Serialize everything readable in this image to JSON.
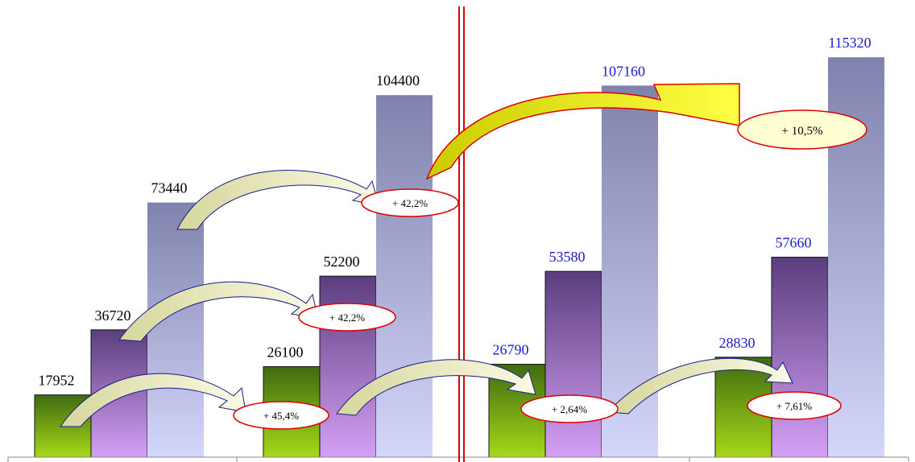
{
  "chart_data": {
    "type": "bar",
    "categories": [
      "",
      "",
      "",
      ""
    ],
    "series": [
      {
        "values": [
          17952,
          26100,
          26790,
          28830
        ]
      },
      {
        "values": [
          36720,
          52200,
          53580,
          57660
        ]
      },
      {
        "values": [
          73440,
          104400,
          107160,
          115320
        ]
      }
    ],
    "value_labels": {
      "group_0": [
        "17952",
        "36720",
        "73440"
      ],
      "group_1": [
        "26100",
        "52200",
        "104400"
      ],
      "group_2": [
        "26790",
        "53580",
        "107160"
      ],
      "group_3": [
        "28830",
        "57660",
        "115320"
      ]
    },
    "label_colors": {
      "left_groups": "#000000",
      "right_groups": "#1a1ad0"
    },
    "ylim": [
      0,
      120000
    ],
    "grid": false,
    "legend": "none",
    "annotations": [
      {
        "text": "+ 45,4%",
        "from_group": 0,
        "to_group": 1,
        "series": 0
      },
      {
        "text": "+ 42,2%",
        "from_group": 0,
        "to_group": 1,
        "series": 1
      },
      {
        "text": "+ 42,2%",
        "from_group": 0,
        "to_group": 1,
        "series": 2
      },
      {
        "text": "+ 2,64%",
        "from_group": 1,
        "to_group": 2,
        "series": 0
      },
      {
        "text": "+ 7,61%",
        "from_group": 2,
        "to_group": 3,
        "series": 0
      },
      {
        "text": "+ 10,5%",
        "from_group": 1,
        "to_group": 3,
        "series": 2
      }
    ],
    "colors": {
      "series_0": "#7aa320",
      "series_1": "#8f63b8",
      "series_2": "#a9abd6",
      "arrow_fill": "#f0f0c8",
      "arrow_stroke": "#1a1a8a",
      "big_arrow_fill": "#ffff33",
      "big_arrow_stroke": "#dd0000",
      "divider": "#dd0000"
    }
  }
}
